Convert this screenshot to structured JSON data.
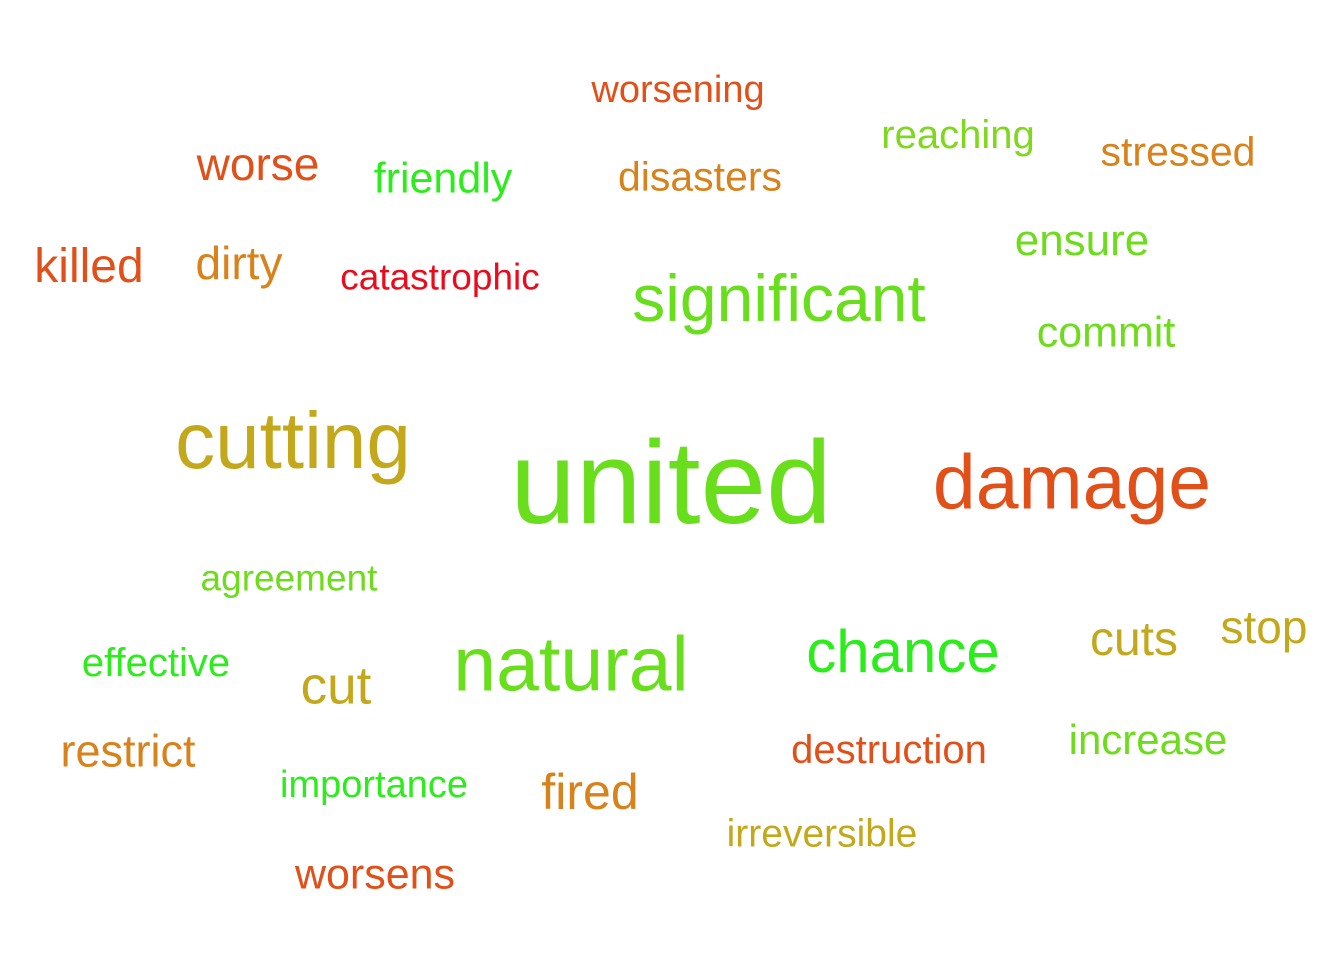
{
  "words": {
    "worsening": {
      "text": "worsening",
      "color": "#e2501a"
    },
    "reaching": {
      "text": "reaching",
      "color": "#7ed81c"
    },
    "stressed": {
      "text": "stressed",
      "color": "#d8821c"
    },
    "worse": {
      "text": "worse",
      "color": "#e2501a"
    },
    "friendly": {
      "text": "friendly",
      "color": "#2cec1c"
    },
    "disasters": {
      "text": "disasters",
      "color": "#d8821c"
    },
    "ensure": {
      "text": "ensure",
      "color": "#6edc1c"
    },
    "killed": {
      "text": "killed",
      "color": "#e2501a"
    },
    "dirty": {
      "text": "dirty",
      "color": "#d8821c"
    },
    "catastrophic": {
      "text": "catastrophic",
      "color": "#ea0c1c"
    },
    "significant": {
      "text": "significant",
      "color": "#68de1c"
    },
    "commit": {
      "text": "commit",
      "color": "#6edc1c"
    },
    "cutting": {
      "text": "cutting",
      "color": "#c4a81c"
    },
    "united": {
      "text": "united",
      "color": "#68de1c"
    },
    "damage": {
      "text": "damage",
      "color": "#e2501a"
    },
    "agreement": {
      "text": "agreement",
      "color": "#6edc1c"
    },
    "stop": {
      "text": "stop",
      "color": "#c4a81c"
    },
    "cuts": {
      "text": "cuts",
      "color": "#c4a81c"
    },
    "chance": {
      "text": "chance",
      "color": "#2cec1c"
    },
    "effective": {
      "text": "effective",
      "color": "#2cec1c"
    },
    "natural": {
      "text": "natural",
      "color": "#68de1c"
    },
    "cut": {
      "text": "cut",
      "color": "#c4a81c"
    },
    "increase": {
      "text": "increase",
      "color": "#6edc1c"
    },
    "destruction": {
      "text": "destruction",
      "color": "#e2501a"
    },
    "restrict": {
      "text": "restrict",
      "color": "#d8821c"
    },
    "importance": {
      "text": "importance",
      "color": "#2cec1c"
    },
    "fired": {
      "text": "fired",
      "color": "#d8821c"
    },
    "irreversible": {
      "text": "irreversible",
      "color": "#c4a81c"
    },
    "worsens": {
      "text": "worsens",
      "color": "#e2501a"
    }
  }
}
